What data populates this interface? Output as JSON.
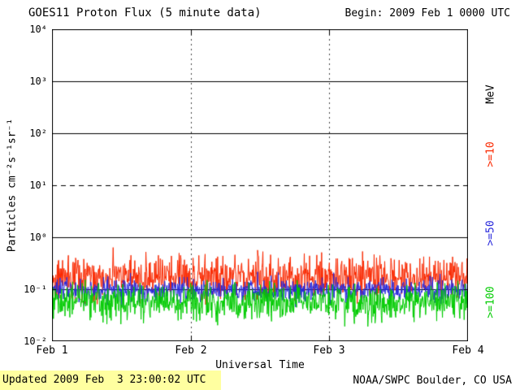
{
  "header": {
    "title": "GOES11 Proton Flux (5 minute data)",
    "begin": "Begin: 2009 Feb 1 0000 UTC"
  },
  "footer": {
    "updated": "Updated 2009 Feb  3 23:00:02 UTC",
    "source": "NOAA/SWPC Boulder, CO USA",
    "updated_bg": "#ffffa0"
  },
  "chart_data": {
    "type": "line",
    "title": "GOES11 Proton Flux (5 minute data)",
    "xlabel": "Universal Time",
    "ylabel": "Particles cm⁻²s⁻¹sr⁻¹",
    "right_axis_label": "MeV",
    "x_ticks": [
      "Feb 1",
      "Feb 2",
      "Feb 3",
      "Feb 4"
    ],
    "y_ticks": [
      "10⁴",
      "10³",
      "10²",
      "10¹",
      "10⁰",
      "10⁻¹",
      "10⁻²"
    ],
    "y_log_range": [
      -2,
      4
    ],
    "x_days": 3,
    "points_per_day": 288,
    "gridlines_solid_log": [
      3,
      2,
      0,
      -1
    ],
    "gridlines_dashed_log": [
      1
    ],
    "vlines_dotted_x_day": [
      1,
      2
    ],
    "grid_color": "#000000",
    "vline_color": "#444444",
    "seed": 42,
    "series": [
      {
        "label": ">=10",
        "color": "#fa2800",
        "baseline": 0.17,
        "log_std": 0.2,
        "spike_prob": 0.03,
        "spike_log": 0.35,
        "log_min": -1.45,
        "approx_range": [
          0.05,
          0.6
        ]
      },
      {
        "label": ">=50",
        "color": "#2828dc",
        "baseline": 0.095,
        "log_std": 0.11,
        "spike_prob": 0.01,
        "spike_log": 0.25,
        "log_min": -1.45,
        "approx_range": [
          0.05,
          0.2
        ]
      },
      {
        "label": ">=100",
        "color": "#00cc00",
        "baseline": 0.055,
        "log_std": 0.17,
        "spike_prob": 0.02,
        "spike_log": 0.3,
        "log_min": -1.78,
        "approx_range": [
          0.02,
          0.15
        ]
      }
    ]
  }
}
